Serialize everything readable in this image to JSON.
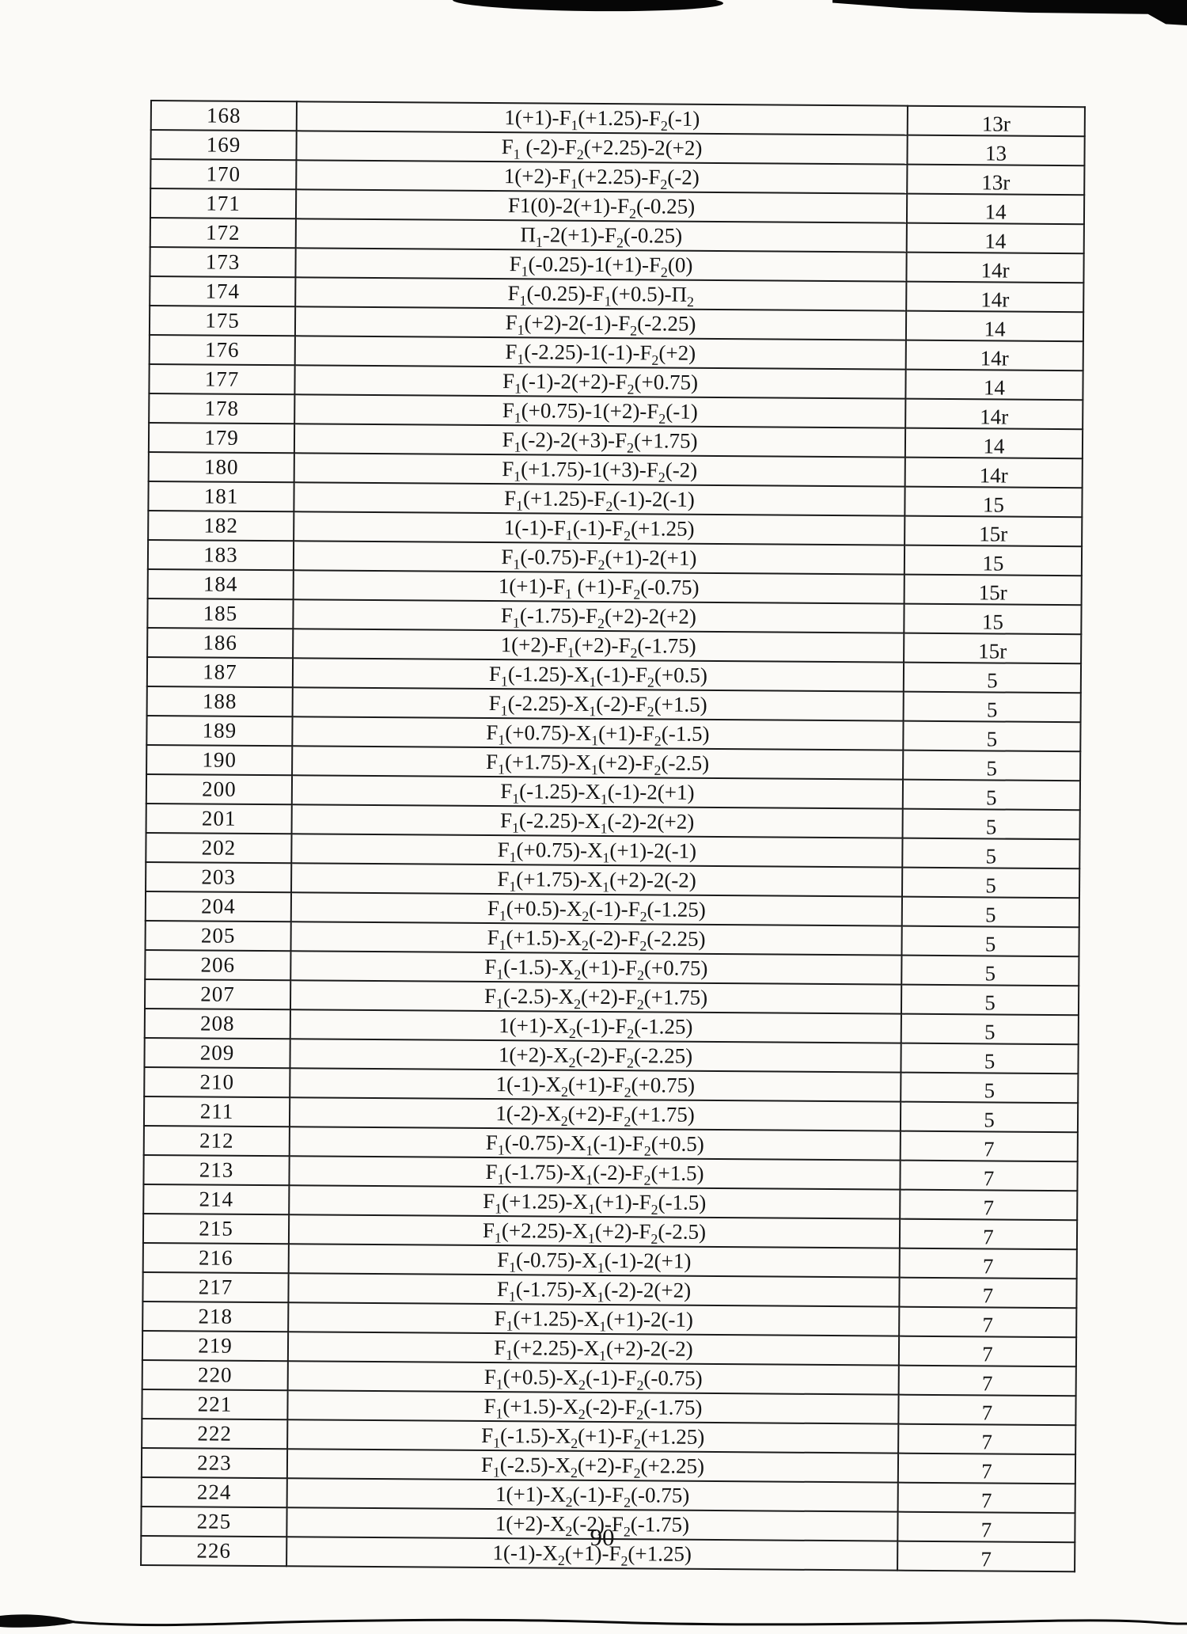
{
  "page": {
    "number": "90"
  },
  "table": {
    "rows": [
      {
        "id": "168",
        "formula": "1(+1)-F_1(+1.25)-F_2(-1)",
        "value": "13r"
      },
      {
        "id": "169",
        "formula": "F_1 (-2)-F_2(+2.25)-2(+2)",
        "value": "13"
      },
      {
        "id": "170",
        "formula": "1(+2)-F_1(+2.25)-F_2(-2)",
        "value": "13r"
      },
      {
        "id": "171",
        "formula": "F1(0)-2(+1)-F_2(-0.25)",
        "value": "14"
      },
      {
        "id": "172",
        "formula": "Π_1-2(+1)-F_2(-0.25)",
        "value": "14"
      },
      {
        "id": "173",
        "formula": "F_1(-0.25)-1(+1)-F_2(0)",
        "value": "14r"
      },
      {
        "id": "174",
        "formula": "F_1(-0.25)-F_1(+0.5)-Π_2",
        "value": "14r"
      },
      {
        "id": "175",
        "formula": "F_1(+2)-2(-1)-F_2(-2.25)",
        "value": "14"
      },
      {
        "id": "176",
        "formula": "F_1(-2.25)-1(-1)-F_2(+2)",
        "value": "14r"
      },
      {
        "id": "177",
        "formula": "F_1(-1)-2(+2)-F_2(+0.75)",
        "value": "14"
      },
      {
        "id": "178",
        "formula": "F_1(+0.75)-1(+2)-F_2(-1)",
        "value": "14r"
      },
      {
        "id": "179",
        "formula": "F_1(-2)-2(+3)-F_2(+1.75)",
        "value": "14"
      },
      {
        "id": "180",
        "formula": "F_1(+1.75)-1(+3)-F_2(-2)",
        "value": "14r"
      },
      {
        "id": "181",
        "formula": "F_1(+1.25)-F_2(-1)-2(-1)",
        "value": "15"
      },
      {
        "id": "182",
        "formula": "1(-1)-F_1(-1)-F_2(+1.25)",
        "value": "15r"
      },
      {
        "id": "183",
        "formula": "F_1(-0.75)-F_2(+1)-2(+1)",
        "value": "15"
      },
      {
        "id": "184",
        "formula": "1(+1)-F_1 (+1)-F_2(-0.75)",
        "value": "15r"
      },
      {
        "id": "185",
        "formula": "F_1(-1.75)-F_2(+2)-2(+2)",
        "value": "15"
      },
      {
        "id": "186",
        "formula": "1(+2)-F_1(+2)-F_2(-1.75)",
        "value": "15r"
      },
      {
        "id": "187",
        "formula": "F_1(-1.25)-X_1(-1)-F_2(+0.5)",
        "value": "5"
      },
      {
        "id": "188",
        "formula": "F_1(-2.25)-X_1(-2)-F_2(+1.5)",
        "value": "5"
      },
      {
        "id": "189",
        "formula": "F_1(+0.75)-X_1(+1)-F_2(-1.5)",
        "value": "5"
      },
      {
        "id": "190",
        "formula": "F_1(+1.75)-X_1(+2)-F_2(-2.5)",
        "value": "5"
      },
      {
        "id": "200",
        "formula": "F_1(-1.25)-X_1(-1)-2(+1)",
        "value": "5"
      },
      {
        "id": "201",
        "formula": "F_1(-2.25)-X_1(-2)-2(+2)",
        "value": "5"
      },
      {
        "id": "202",
        "formula": "F_1(+0.75)-X_1(+1)-2(-1)",
        "value": "5"
      },
      {
        "id": "203",
        "formula": "F_1(+1.75)-X_1(+2)-2(-2)",
        "value": "5"
      },
      {
        "id": "204",
        "formula": "F_1(+0.5)-X_2(-1)-F_2(-1.25)",
        "value": "5"
      },
      {
        "id": "205",
        "formula": "F_1(+1.5)-X_2(-2)-F_2(-2.25)",
        "value": "5"
      },
      {
        "id": "206",
        "formula": "F_1(-1.5)-X_2(+1)-F_2(+0.75)",
        "value": "5"
      },
      {
        "id": "207",
        "formula": "F_1(-2.5)-X_2(+2)-F_2(+1.75)",
        "value": "5"
      },
      {
        "id": "208",
        "formula": "1(+1)-X_2(-1)-F_2(-1.25)",
        "value": "5"
      },
      {
        "id": "209",
        "formula": "1(+2)-X_2(-2)-F_2(-2.25)",
        "value": "5"
      },
      {
        "id": "210",
        "formula": "1(-1)-X_2(+1)-F_2(+0.75)",
        "value": "5"
      },
      {
        "id": "211",
        "formula": "1(-2)-X_2(+2)-F_2(+1.75)",
        "value": "5"
      },
      {
        "id": "212",
        "formula": "F_1(-0.75)-X_1(-1)-F_2(+0.5)",
        "value": "7"
      },
      {
        "id": "213",
        "formula": "F_1(-1.75)-X_1(-2)-F_2(+1.5)",
        "value": "7"
      },
      {
        "id": "214",
        "formula": "F_1(+1.25)-X_1(+1)-F_2(-1.5)",
        "value": "7"
      },
      {
        "id": "215",
        "formula": "F_1(+2.25)-X_1(+2)-F_2(-2.5)",
        "value": "7"
      },
      {
        "id": "216",
        "formula": "F_1(-0.75)-X_1(-1)-2(+1)",
        "value": "7"
      },
      {
        "id": "217",
        "formula": "F_1(-1.75)-X_1(-2)-2(+2)",
        "value": "7"
      },
      {
        "id": "218",
        "formula": "F_1(+1.25)-X_1(+1)-2(-1)",
        "value": "7"
      },
      {
        "id": "219",
        "formula": "F_1(+2.25)-X_1(+2)-2(-2)",
        "value": "7"
      },
      {
        "id": "220",
        "formula": "F_1(+0.5)-X_2(-1)-F_2(-0.75)",
        "value": "7"
      },
      {
        "id": "221",
        "formula": "F_1(+1.5)-X_2(-2)-F_2(-1.75)",
        "value": "7"
      },
      {
        "id": "222",
        "formula": "F_1(-1.5)-X_2(+1)-F_2(+1.25)",
        "value": "7"
      },
      {
        "id": "223",
        "formula": "F_1(-2.5)-X_2(+2)-F_2(+2.25)",
        "value": "7"
      },
      {
        "id": "224",
        "formula": "1(+1)-X_2(-1)-F_2(-0.75)",
        "value": "7"
      },
      {
        "id": "225",
        "formula": "1(+2)-X_2(-2)-F_2(-1.75)",
        "value": "7"
      },
      {
        "id": "226",
        "formula": "1(-1)-X_2(+1)-F_2(+1.25)",
        "value": "7"
      }
    ]
  }
}
